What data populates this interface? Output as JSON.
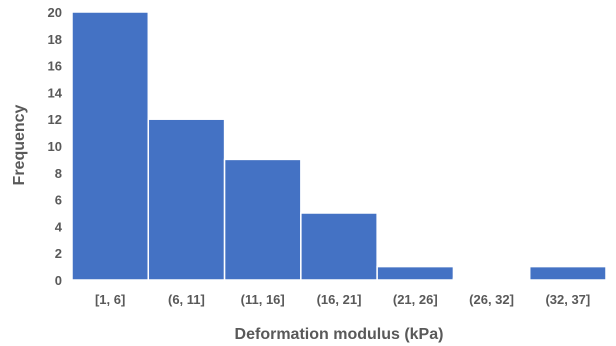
{
  "chart_data": {
    "type": "bar",
    "title": "",
    "xlabel": "Deformation modulus (kPa)",
    "ylabel": "Frequency",
    "categories": [
      "[1, 6]",
      "(6, 11]",
      "(11, 16]",
      "(16, 21]",
      "(21, 26]",
      "(26, 32]",
      "(32, 37]"
    ],
    "values": [
      20,
      12,
      9,
      5,
      1,
      0,
      1
    ],
    "ylim": [
      0,
      20
    ],
    "yticks": [
      "0",
      "2",
      "4",
      "6",
      "8",
      "10",
      "12",
      "14",
      "16",
      "18",
      "20"
    ],
    "grid": false,
    "legend": "none",
    "bar_color": "#4472C4",
    "bar_edge_color": "#ffffff",
    "axis_color": "#595959"
  }
}
